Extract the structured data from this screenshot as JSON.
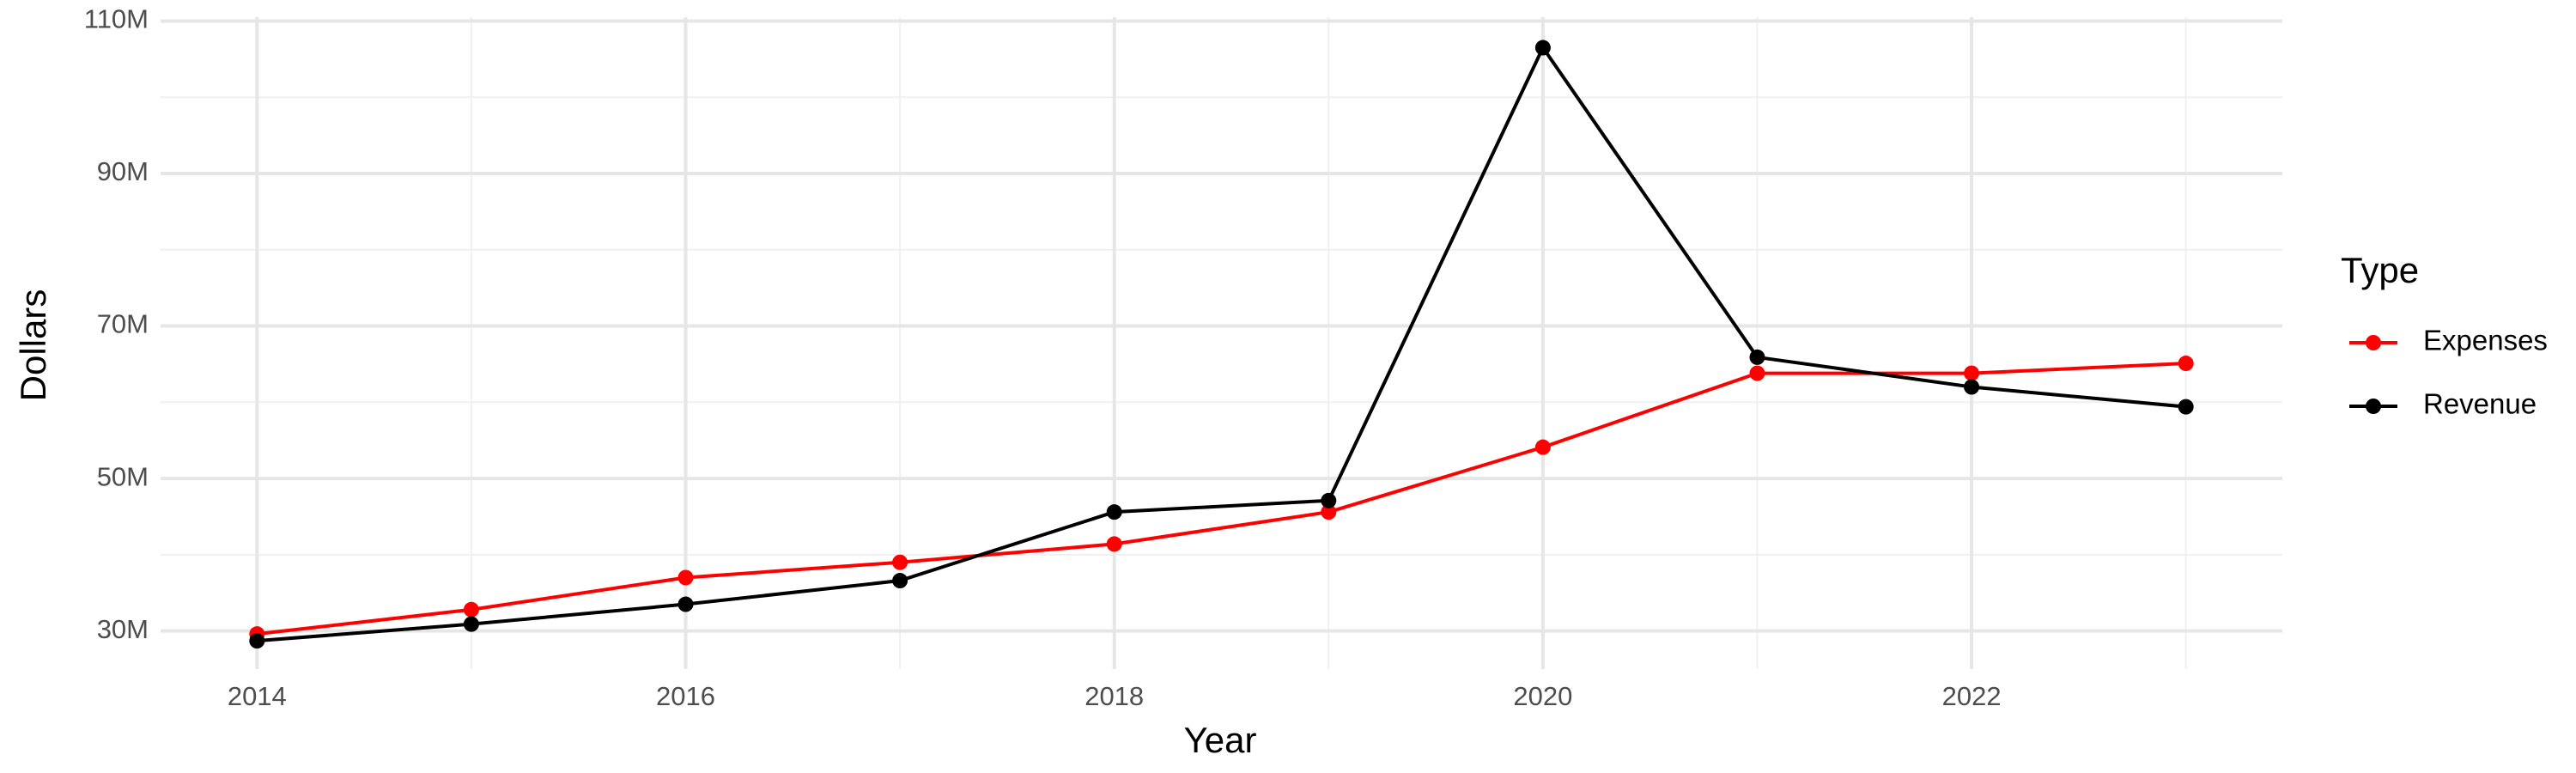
{
  "chart_data": {
    "type": "line",
    "x_label": "Year",
    "y_label": "Dollars",
    "x": [
      2014,
      2015,
      2016,
      2017,
      2018,
      2019,
      2020,
      2021,
      2022,
      2023
    ],
    "series": [
      {
        "name": "Expenses",
        "color": "#ff0000",
        "values": [
          29600000,
          32800000,
          37000000,
          39000000,
          41400000,
          45600000,
          54100000,
          63800000,
          63800000,
          65100000
        ]
      },
      {
        "name": "Revenue",
        "color": "#000000",
        "values": [
          28700000,
          30900000,
          33500000,
          36600000,
          45600000,
          47100000,
          106500000,
          65900000,
          62000000,
          59400000
        ]
      }
    ],
    "xlim": [
      2013.55,
      2023.45
    ],
    "xticks": [
      2014,
      2016,
      2018,
      2020,
      2022
    ],
    "minor_xticks": [
      2015,
      2017,
      2019,
      2021,
      2023
    ],
    "ylim": [
      25000000,
      110500000
    ],
    "yticks": [
      {
        "value": 30000000,
        "label": "30M"
      },
      {
        "value": 50000000,
        "label": "50M"
      },
      {
        "value": 70000000,
        "label": "70M"
      },
      {
        "value": 90000000,
        "label": "90M"
      },
      {
        "value": 110000000,
        "label": "110M"
      }
    ],
    "minor_yticks": [
      40000000,
      60000000,
      80000000,
      100000000
    ],
    "grid": true,
    "legend_title": "Type",
    "legend_position": "right"
  }
}
